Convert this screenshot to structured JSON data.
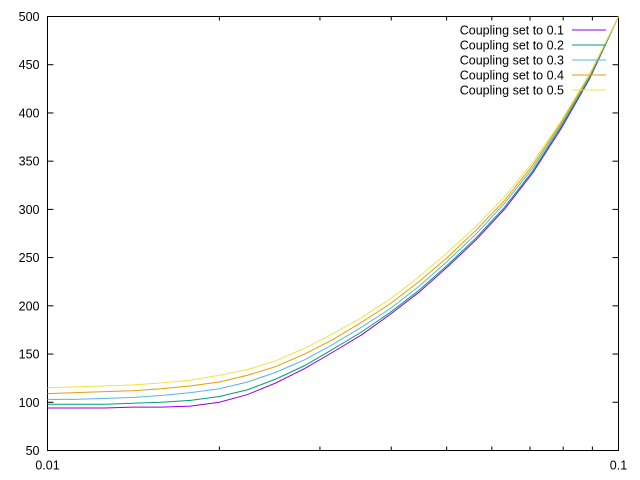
{
  "chart_data": {
    "type": "line",
    "title": "",
    "xlabel": "",
    "ylabel": "",
    "x_scale": "log",
    "xlim": [
      0.01,
      0.1
    ],
    "ylim": [
      50,
      500
    ],
    "grid": false,
    "legend_position": "top-right",
    "x_tick_labels": [
      "0.01",
      "0.1"
    ],
    "y_tick_labels": [
      "50",
      "100",
      "150",
      "200",
      "250",
      "300",
      "350",
      "400",
      "450",
      "500"
    ],
    "x": [
      0.01,
      0.0112,
      0.0126,
      0.0141,
      0.0158,
      0.0178,
      0.02,
      0.0224,
      0.0251,
      0.0282,
      0.0316,
      0.0355,
      0.0398,
      0.0447,
      0.0501,
      0.0562,
      0.0631,
      0.0708,
      0.0794,
      0.0891,
      0.1
    ],
    "series": [
      {
        "name": "Coupling set to 0.1",
        "color": "#9400d3",
        "values": [
          94,
          94,
          94,
          95,
          95,
          96,
          100,
          108,
          120,
          135,
          152,
          170,
          191,
          214,
          240,
          268,
          300,
          338,
          384,
          436,
          500
        ]
      },
      {
        "name": "Coupling set to 0.2",
        "color": "#009e73",
        "values": [
          98,
          98,
          98,
          99,
          100,
          102,
          106,
          113,
          124,
          138,
          155,
          173,
          193,
          216,
          242,
          270,
          302,
          340,
          386,
          437,
          500
        ]
      },
      {
        "name": "Coupling set to 0.3",
        "color": "#56b4e9",
        "values": [
          103,
          103,
          104,
          105,
          107,
          110,
          114,
          121,
          131,
          144,
          160,
          178,
          197,
          220,
          246,
          274,
          306,
          343,
          388,
          439,
          500
        ]
      },
      {
        "name": "Coupling set to 0.4",
        "color": "#e69f00",
        "values": [
          109,
          110,
          111,
          112,
          114,
          117,
          121,
          128,
          137,
          150,
          165,
          183,
          202,
          225,
          250,
          278,
          309,
          346,
          390,
          440,
          500
        ]
      },
      {
        "name": "Coupling set to 0.5",
        "color": "#f0e442",
        "values": [
          115,
          116,
          117,
          118,
          120,
          123,
          128,
          134,
          143,
          156,
          171,
          188,
          207,
          230,
          255,
          282,
          313,
          349,
          392,
          441,
          500
        ]
      }
    ]
  }
}
